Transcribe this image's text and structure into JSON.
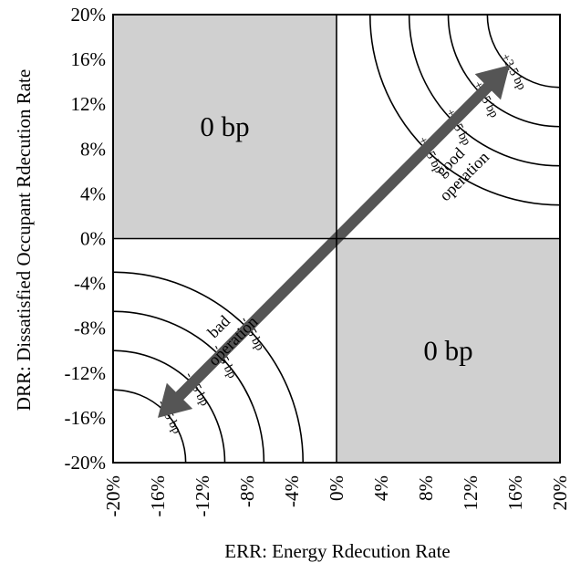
{
  "chart_data": {
    "type": "contour",
    "xlabel": "ERR: Energy Rdecution Rate",
    "ylabel": "DRR: Dissatisfied Occupant Rdecution Rate",
    "xlim": [
      -20,
      20
    ],
    "ylim": [
      -20,
      20
    ],
    "x_ticks": [
      "-20%",
      "-16%",
      "-12%",
      "-8%",
      "-4%",
      "0%",
      "4%",
      "8%",
      "12%",
      "16%",
      "20%"
    ],
    "y_ticks": [
      "20%",
      "16%",
      "12%",
      "8%",
      "4%",
      "0%",
      "-4%",
      "-8%",
      "-12%",
      "-16%",
      "-20%"
    ],
    "shaded_regions": [
      {
        "quadrant": "top-left",
        "label": "0 bp",
        "color": "#d0d0d0"
      },
      {
        "quadrant": "bottom-right",
        "label": "0 bp",
        "color": "#d0d0d0"
      }
    ],
    "contours": [
      {
        "label": "+0.5 bp",
        "quadrant": "top-right",
        "radius": 17
      },
      {
        "label": "+1.5 bp",
        "quadrant": "top-right",
        "radius": 13.5
      },
      {
        "label": "+2.5 bp",
        "quadrant": "top-right",
        "radius": 10
      },
      {
        "label": "+3.5 bp",
        "quadrant": "top-right",
        "radius": 6.5
      },
      {
        "label": "-0.5 bp",
        "quadrant": "bottom-left",
        "radius": 17
      },
      {
        "label": "-1.5 bp",
        "quadrant": "bottom-left",
        "radius": 13.5
      },
      {
        "label": "-2.5 bp",
        "quadrant": "bottom-left",
        "radius": 10
      },
      {
        "label": "-3.5 bp",
        "quadrant": "bottom-left",
        "radius": 6.5
      }
    ],
    "annotations": [
      {
        "text_lines": [
          "good",
          "operation"
        ],
        "quadrant": "top-right"
      },
      {
        "text_lines": [
          "bad",
          "operation"
        ],
        "quadrant": "bottom-left"
      }
    ],
    "arrow": {
      "from": [
        -16,
        -16
      ],
      "to": [
        15.5,
        15.5
      ],
      "double_headed": true,
      "color": "#555555"
    },
    "grid": false
  }
}
